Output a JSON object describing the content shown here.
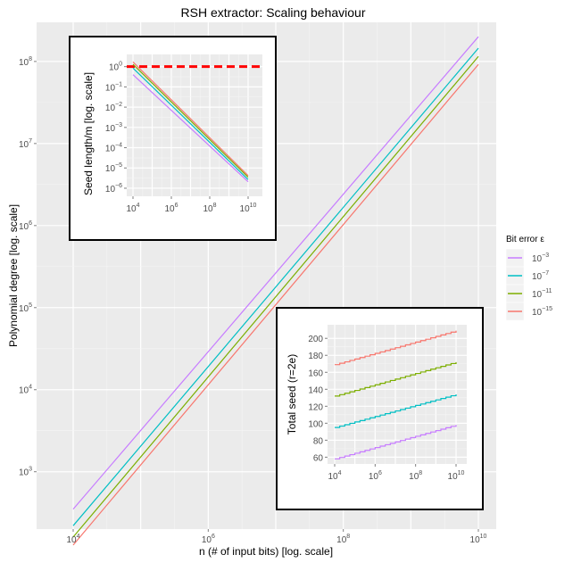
{
  "chart_data": [
    {
      "type": "line",
      "title": "RSH extractor: Scaling behaviour",
      "xlabel": "n (# of input bits) [log. scale]",
      "ylabel": "Polynomial degree [log. scale]",
      "x_scale": "log10",
      "y_scale": "log10",
      "x_range": [
        10000,
        10000000000
      ],
      "ylim": [
        200,
        300000000
      ],
      "x_tick_labels": [
        {
          "base": "10",
          "exp": "4"
        },
        {
          "base": "10",
          "exp": "6"
        },
        {
          "base": "10",
          "exp": "8"
        },
        {
          "base": "10",
          "exp": "10"
        }
      ],
      "y_tick_labels": [
        {
          "base": "10",
          "exp": "3"
        },
        {
          "base": "10",
          "exp": "4"
        },
        {
          "base": "10",
          "exp": "5"
        },
        {
          "base": "10",
          "exp": "6"
        },
        {
          "base": "10",
          "exp": "7"
        },
        {
          "base": "10",
          "exp": "8"
        }
      ],
      "grid": true,
      "legend": {
        "title": "Bit error ε",
        "placement": "right",
        "entries": [
          {
            "base": "10",
            "exp": "−3",
            "color": "#C77CFF"
          },
          {
            "base": "10",
            "exp": "−7",
            "color": "#00BFC4"
          },
          {
            "base": "10",
            "exp": "−11",
            "color": "#7CAE00"
          },
          {
            "base": "10",
            "exp": "−15",
            "color": "#F8766D"
          }
        ]
      },
      "series": [
        {
          "epsilon": "1e-3",
          "color": "#C77CFF",
          "x": [
            10000,
            10000000000
          ],
          "values": [
            350,
            200000000
          ]
        },
        {
          "epsilon": "1e-7",
          "color": "#00BFC4",
          "x": [
            10000,
            10000000000
          ],
          "values": [
            220,
            145000000
          ]
        },
        {
          "epsilon": "1e-11",
          "color": "#7CAE00",
          "x": [
            10000,
            10000000000
          ],
          "values": [
            160,
            115000000
          ]
        },
        {
          "epsilon": "1e-15",
          "color": "#F8766D",
          "x": [
            10000,
            10000000000
          ],
          "values": [
            128,
            92000000
          ]
        }
      ]
    },
    {
      "type": "line",
      "title": "",
      "xlabel": "",
      "ylabel": "Seed length/m [log. scale]",
      "x_scale": "log10",
      "y_scale": "log10",
      "x_range": [
        10000,
        10000000000
      ],
      "ylim": [
        4e-07,
        4
      ],
      "x_tick_labels": [
        {
          "base": "10",
          "exp": "4"
        },
        {
          "base": "10",
          "exp": "6"
        },
        {
          "base": "10",
          "exp": "8"
        },
        {
          "base": "10",
          "exp": "10"
        }
      ],
      "y_tick_labels": [
        {
          "base": "10",
          "exp": "0"
        },
        {
          "base": "10",
          "exp": "−1"
        },
        {
          "base": "10",
          "exp": "−2"
        },
        {
          "base": "10",
          "exp": "−3"
        },
        {
          "base": "10",
          "exp": "−4"
        },
        {
          "base": "10",
          "exp": "−5"
        },
        {
          "base": "10",
          "exp": "−6"
        }
      ],
      "reference_line": {
        "y": 1,
        "color": "#FF0000",
        "style": "dashed"
      },
      "series": [
        {
          "epsilon": "1e-3",
          "color": "#C77CFF",
          "x": [
            10000,
            10000000000
          ],
          "values": [
            0.4,
            2.1e-06
          ]
        },
        {
          "epsilon": "1e-7",
          "color": "#00BFC4",
          "x": [
            10000,
            10000000000
          ],
          "values": [
            0.85,
            2.7e-06
          ]
        },
        {
          "epsilon": "1e-11",
          "color": "#7CAE00",
          "x": [
            10000,
            10000000000
          ],
          "values": [
            1.3,
            3.5e-06
          ]
        },
        {
          "epsilon": "1e-15",
          "color": "#F8766D",
          "x": [
            10000,
            10000000000
          ],
          "values": [
            1.7,
            4.2e-06
          ]
        }
      ]
    },
    {
      "type": "line",
      "title": "",
      "xlabel": "",
      "ylabel": "Total seed (r=2e)",
      "x_scale": "log10",
      "y_scale": "linear",
      "x_range": [
        10000,
        10000000000
      ],
      "ylim": [
        52,
        216
      ],
      "x_tick_labels": [
        {
          "base": "10",
          "exp": "4"
        },
        {
          "base": "10",
          "exp": "6"
        },
        {
          "base": "10",
          "exp": "8"
        },
        {
          "base": "10",
          "exp": "10"
        }
      ],
      "y_ticks": [
        60,
        80,
        100,
        120,
        140,
        160,
        180,
        200
      ],
      "y_tick_labels": [
        "60",
        "80",
        "100",
        "120",
        "140",
        "160",
        "180",
        "200"
      ],
      "series": [
        {
          "epsilon": "1e-3",
          "color": "#C77CFF",
          "x": [
            10000,
            10000000000
          ],
          "values": [
            58,
            98
          ]
        },
        {
          "epsilon": "1e-7",
          "color": "#00BFC4",
          "x": [
            10000,
            10000000000
          ],
          "values": [
            95,
            134
          ]
        },
        {
          "epsilon": "1e-11",
          "color": "#7CAE00",
          "x": [
            10000,
            10000000000
          ],
          "values": [
            132,
            172
          ]
        },
        {
          "epsilon": "1e-15",
          "color": "#F8766D",
          "x": [
            10000,
            10000000000
          ],
          "values": [
            169,
            209
          ]
        }
      ]
    }
  ]
}
